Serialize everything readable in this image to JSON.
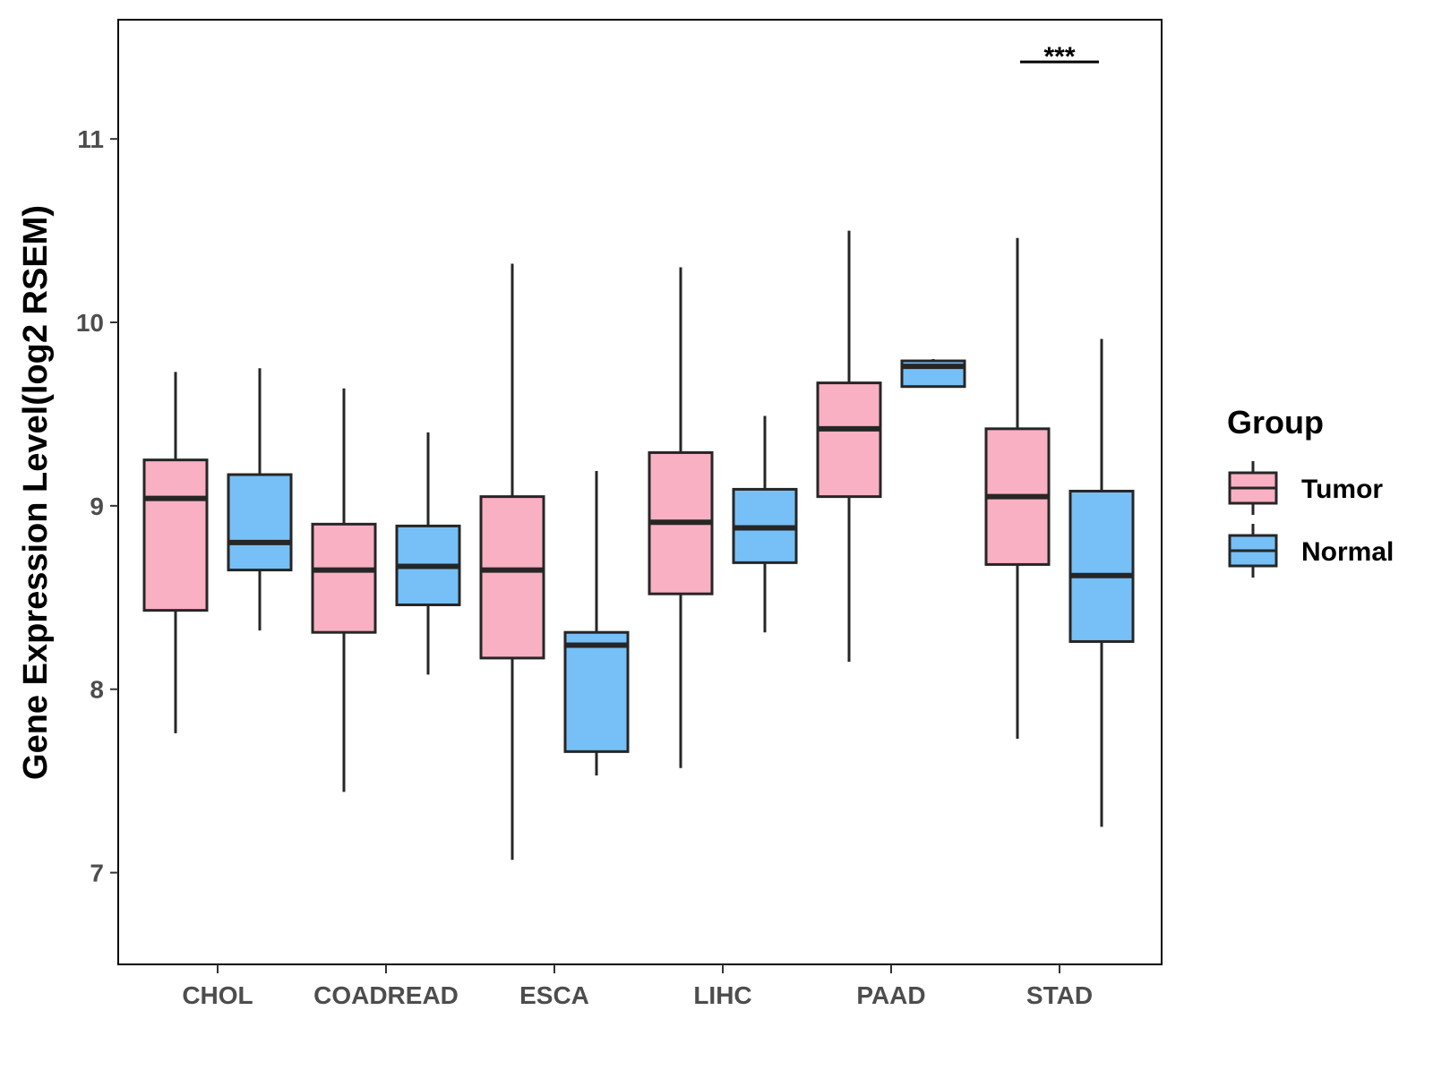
{
  "chart_data": {
    "type": "boxplot",
    "title": "",
    "xlabel": "",
    "ylabel": "Gene Expression Level(log2 RSEM)",
    "ylim": [
      6.5,
      11.65
    ],
    "yticks": [
      7,
      8,
      9,
      10,
      11
    ],
    "grid": false,
    "categories": [
      "CHOL",
      "COADREAD",
      "ESCA",
      "LIHC",
      "PAAD",
      "STAD"
    ],
    "legend": {
      "title": "Group",
      "position": "right",
      "entries": [
        {
          "label": "Tumor",
          "color": "#f9b0c3"
        },
        {
          "label": "Normal",
          "color": "#76c0f7"
        }
      ]
    },
    "series": [
      {
        "name": "Tumor",
        "color": "#f9b0c3",
        "boxes": [
          {
            "category": "CHOL",
            "min": 7.76,
            "q1": 8.43,
            "median": 9.04,
            "q3": 9.25,
            "max": 9.73
          },
          {
            "category": "COADREAD",
            "min": 7.44,
            "q1": 8.31,
            "median": 8.65,
            "q3": 8.9,
            "max": 9.64
          },
          {
            "category": "ESCA",
            "min": 7.07,
            "q1": 8.17,
            "median": 8.65,
            "q3": 9.05,
            "max": 10.32
          },
          {
            "category": "LIHC",
            "min": 7.57,
            "q1": 8.52,
            "median": 8.91,
            "q3": 9.29,
            "max": 10.3
          },
          {
            "category": "PAAD",
            "min": 8.15,
            "q1": 9.05,
            "median": 9.42,
            "q3": 9.67,
            "max": 10.5
          },
          {
            "category": "STAD",
            "min": 7.73,
            "q1": 8.68,
            "median": 9.05,
            "q3": 9.42,
            "max": 10.46
          }
        ]
      },
      {
        "name": "Normal",
        "color": "#76c0f7",
        "boxes": [
          {
            "category": "CHOL",
            "min": 8.32,
            "q1": 8.65,
            "median": 8.8,
            "q3": 9.17,
            "max": 9.75
          },
          {
            "category": "COADREAD",
            "min": 8.08,
            "q1": 8.46,
            "median": 8.67,
            "q3": 8.89,
            "max": 9.4
          },
          {
            "category": "ESCA",
            "min": 7.53,
            "q1": 7.66,
            "median": 8.24,
            "q3": 8.31,
            "max": 9.19
          },
          {
            "category": "LIHC",
            "min": 8.31,
            "q1": 8.69,
            "median": 8.88,
            "q3": 9.09,
            "max": 9.49
          },
          {
            "category": "PAAD",
            "min": 9.65,
            "q1": 9.65,
            "median": 9.76,
            "q3": 9.79,
            "max": 9.8
          },
          {
            "category": "STAD",
            "min": 7.25,
            "q1": 8.26,
            "median": 8.62,
            "q3": 9.08,
            "max": 9.91
          }
        ]
      }
    ],
    "annotations": [
      {
        "category": "STAD",
        "text": "***",
        "y": 11.42
      }
    ]
  }
}
